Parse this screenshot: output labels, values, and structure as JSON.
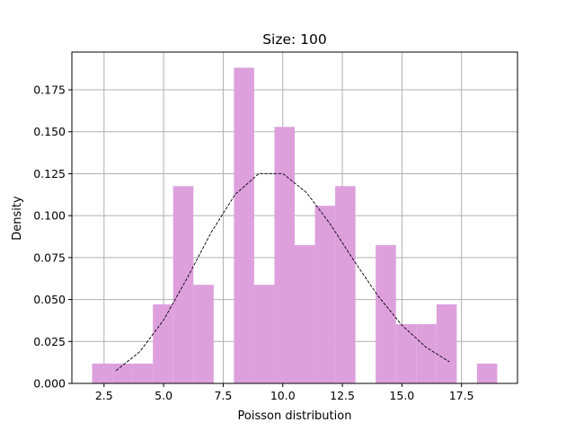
{
  "chart_data": {
    "type": "bar",
    "title": "Size: 100",
    "xlabel": "Poisson distribution",
    "ylabel": "Density",
    "xlim": [
      1.15,
      19.85
    ],
    "ylim": [
      0,
      0.1975
    ],
    "grid": true,
    "bar_color": "#dda0dd",
    "curve_color": "#000000",
    "x_ticks": [
      2.5,
      5.0,
      7.5,
      10.0,
      12.5,
      15.0,
      17.5
    ],
    "x_tick_labels": [
      "2.5",
      "5.0",
      "7.5",
      "10.0",
      "12.5",
      "15.0",
      "17.5"
    ],
    "y_ticks": [
      0,
      0.025,
      0.05,
      0.075,
      0.1,
      0.125,
      0.15,
      0.175
    ],
    "y_tick_labels": [
      "0.000",
      "0.025",
      "0.050",
      "0.075",
      "0.100",
      "0.125",
      "0.150",
      "0.175"
    ],
    "bins": [
      {
        "x0": 2.0,
        "x1": 2.85,
        "density": 0.0118
      },
      {
        "x0": 2.85,
        "x1": 3.7,
        "density": 0.0118
      },
      {
        "x0": 3.7,
        "x1": 4.55,
        "density": 0.0118
      },
      {
        "x0": 4.55,
        "x1": 5.4,
        "density": 0.0471
      },
      {
        "x0": 5.4,
        "x1": 6.25,
        "density": 0.1176
      },
      {
        "x0": 6.25,
        "x1": 7.1,
        "density": 0.0588
      },
      {
        "x0": 7.1,
        "x1": 7.95,
        "density": 0.0
      },
      {
        "x0": 7.95,
        "x1": 8.8,
        "density": 0.1882
      },
      {
        "x0": 8.8,
        "x1": 9.65,
        "density": 0.0588
      },
      {
        "x0": 9.65,
        "x1": 10.5,
        "density": 0.1529
      },
      {
        "x0": 10.5,
        "x1": 11.35,
        "density": 0.0824
      },
      {
        "x0": 11.35,
        "x1": 12.2,
        "density": 0.1059
      },
      {
        "x0": 12.2,
        "x1": 13.05,
        "density": 0.1176
      },
      {
        "x0": 13.05,
        "x1": 13.9,
        "density": 0.0
      },
      {
        "x0": 13.9,
        "x1": 14.75,
        "density": 0.0824
      },
      {
        "x0": 14.75,
        "x1": 15.6,
        "density": 0.0353
      },
      {
        "x0": 15.6,
        "x1": 16.45,
        "density": 0.0353
      },
      {
        "x0": 16.45,
        "x1": 17.3,
        "density": 0.0471
      },
      {
        "x0": 17.3,
        "x1": 18.15,
        "density": 0.0
      },
      {
        "x0": 18.15,
        "x1": 19.0,
        "density": 0.0118
      }
    ],
    "curve": {
      "style": "dashed",
      "x": [
        3,
        4,
        5,
        6,
        7,
        8,
        9,
        10,
        11,
        12,
        13,
        14,
        15,
        16,
        17
      ],
      "y": [
        0.0076,
        0.0189,
        0.0378,
        0.0631,
        0.0901,
        0.1126,
        0.1251,
        0.1251,
        0.1137,
        0.0948,
        0.0729,
        0.0521,
        0.0347,
        0.0217,
        0.0128
      ]
    }
  }
}
